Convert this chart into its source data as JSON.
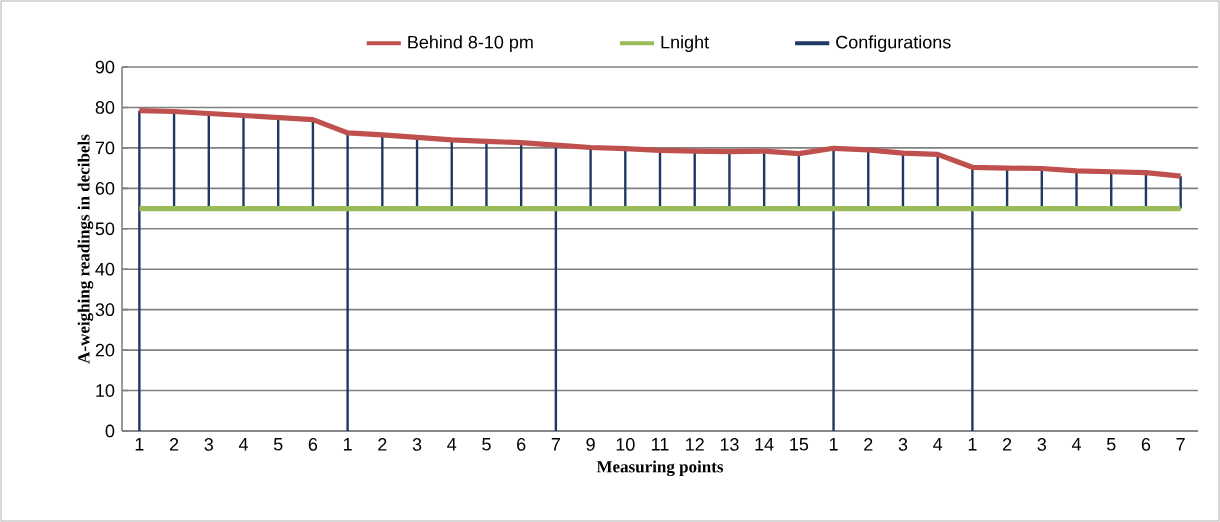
{
  "chart_data": {
    "type": "line",
    "xlabel": "Measuring points",
    "ylabel": "A-weighing readings in decibels",
    "categories": [
      "1",
      "2",
      "3",
      "4",
      "5",
      "6",
      "1",
      "2",
      "3",
      "4",
      "5",
      "6",
      "7",
      "9",
      "10",
      "11",
      "12",
      "13",
      "14",
      "15",
      "1",
      "2",
      "3",
      "4",
      "1",
      "2",
      "3",
      "4",
      "5",
      "6",
      "7"
    ],
    "series": [
      {
        "name": "Behind 8-10 pm",
        "color": "#c0504d",
        "values": [
          79.2,
          79.0,
          78.5,
          78.0,
          77.5,
          77.0,
          73.7,
          73.2,
          72.6,
          72.0,
          71.6,
          71.3,
          70.7,
          70.1,
          69.8,
          69.4,
          69.2,
          69.1,
          69.2,
          68.6,
          69.9,
          69.5,
          68.7,
          68.4,
          65.2,
          65.0,
          64.9,
          64.3,
          64.1,
          63.9,
          63.0
        ]
      },
      {
        "name": "Lnight",
        "color": "#9bbb59",
        "values": [
          55,
          55,
          55,
          55,
          55,
          55,
          55,
          55,
          55,
          55,
          55,
          55,
          55,
          55,
          55,
          55,
          55,
          55,
          55,
          55,
          55,
          55,
          55,
          55,
          55,
          55,
          55,
          55,
          55,
          55,
          55
        ]
      },
      {
        "name": "Configurations",
        "type": "bar",
        "color": "#1f3864",
        "base": [
          0,
          55,
          55,
          55,
          55,
          55,
          0,
          55,
          55,
          55,
          55,
          55,
          0,
          55,
          55,
          55,
          55,
          55,
          55,
          55,
          0,
          55,
          55,
          55,
          0,
          55,
          55,
          55,
          55,
          55,
          55
        ],
        "values": [
          79.2,
          24.0,
          23.5,
          23.0,
          22.5,
          22.0,
          73.7,
          18.2,
          17.6,
          17.0,
          16.6,
          16.3,
          70.7,
          15.1,
          14.8,
          14.4,
          14.2,
          14.1,
          14.2,
          13.6,
          69.9,
          14.5,
          13.7,
          13.4,
          65.2,
          10.0,
          9.9,
          9.3,
          9.1,
          8.9,
          8.0
        ]
      }
    ],
    "ylim": [
      0,
      90
    ],
    "yticks": [
      0,
      10,
      20,
      30,
      40,
      50,
      60,
      70,
      80,
      90
    ],
    "grid": "y",
    "legend": "top",
    "marker": "none",
    "line_style": "solid"
  }
}
